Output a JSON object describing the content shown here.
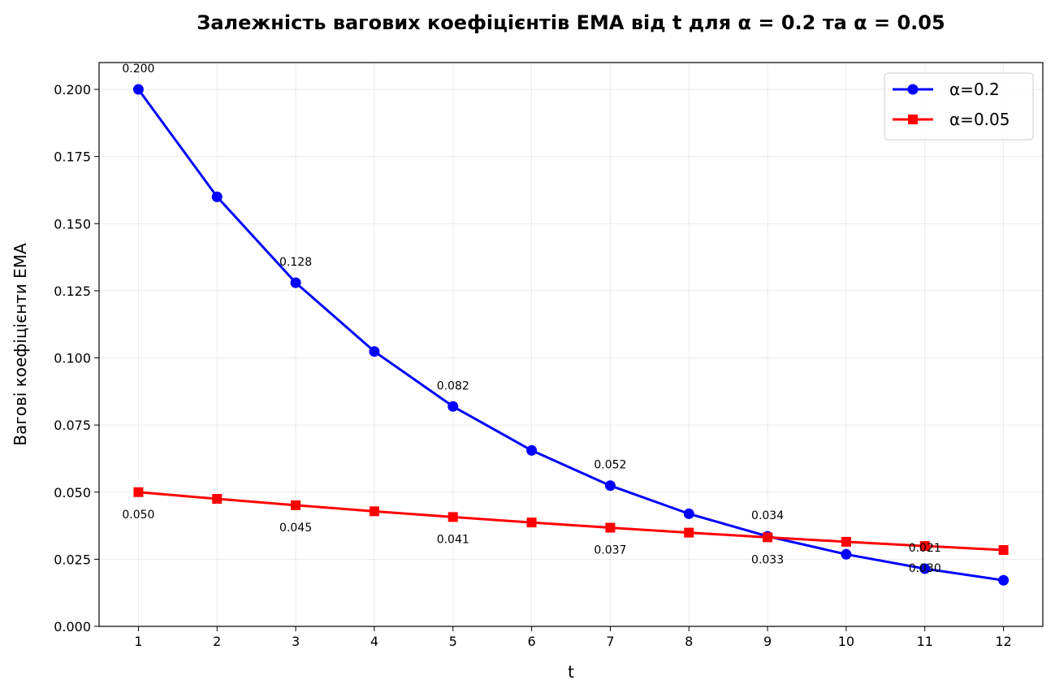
{
  "chart_data": {
    "type": "line",
    "title": "Залежність вагових коефіцієнтів EMA від t для α = 0.2 та α = 0.05",
    "xlabel": "t",
    "ylabel": "Вагові коефіцієнти EMA",
    "x": [
      1,
      2,
      3,
      4,
      5,
      6,
      7,
      8,
      9,
      10,
      11,
      12
    ],
    "xlim": [
      0.5,
      12.5
    ],
    "ylim": [
      0,
      0.21
    ],
    "xticks": [
      "1",
      "2",
      "3",
      "4",
      "5",
      "6",
      "7",
      "8",
      "9",
      "10",
      "11",
      "12"
    ],
    "yticks": [
      "0.000",
      "0.025",
      "0.050",
      "0.075",
      "0.100",
      "0.125",
      "0.150",
      "0.175",
      "0.200"
    ],
    "grid": true,
    "legend_position": "top-right",
    "series": [
      {
        "name": "α=0.2",
        "color": "#0000ff",
        "marker": "circle",
        "values": [
          0.2,
          0.16,
          0.128,
          0.1024,
          0.08192,
          0.065536,
          0.0524288,
          0.041943,
          0.033554,
          0.026844,
          0.021475,
          0.01718
        ],
        "labels": [
          {
            "x": 1,
            "y": 0.2,
            "text": "0.200",
            "pos": "above"
          },
          {
            "x": 3,
            "y": 0.128,
            "text": "0.128",
            "pos": "above"
          },
          {
            "x": 5,
            "y": 0.08192,
            "text": "0.082",
            "pos": "above"
          },
          {
            "x": 7,
            "y": 0.0524288,
            "text": "0.052",
            "pos": "above"
          },
          {
            "x": 9,
            "y": 0.033554,
            "text": "0.034",
            "pos": "above"
          },
          {
            "x": 11,
            "y": 0.021475,
            "text": "0.021",
            "pos": "above"
          }
        ]
      },
      {
        "name": "α=0.05",
        "color": "#ff0000",
        "marker": "square",
        "values": [
          0.05,
          0.0475,
          0.045125,
          0.042869,
          0.040725,
          0.038689,
          0.036755,
          0.034917,
          0.033171,
          0.031512,
          0.029937,
          0.02844
        ],
        "labels": [
          {
            "x": 1,
            "y": 0.05,
            "text": "0.050",
            "pos": "below"
          },
          {
            "x": 3,
            "y": 0.045125,
            "text": "0.045",
            "pos": "below"
          },
          {
            "x": 5,
            "y": 0.040725,
            "text": "0.041",
            "pos": "below"
          },
          {
            "x": 7,
            "y": 0.036755,
            "text": "0.037",
            "pos": "below"
          },
          {
            "x": 9,
            "y": 0.033171,
            "text": "0.033",
            "pos": "below"
          },
          {
            "x": 11,
            "y": 0.029937,
            "text": "0.030",
            "pos": "below"
          }
        ]
      }
    ]
  }
}
